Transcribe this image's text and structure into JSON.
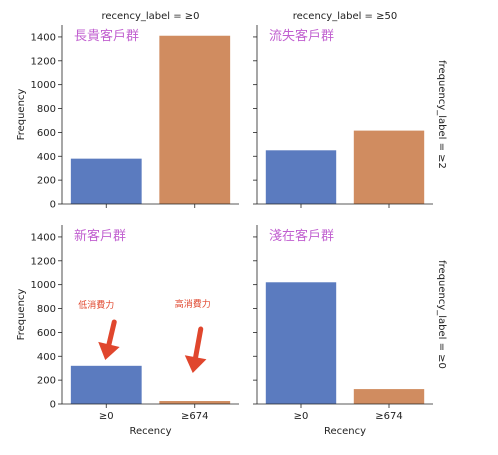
{
  "chart_data": {
    "type": "bar",
    "column_titles": [
      "recency_label = ≥0",
      "recency_label = ≥50"
    ],
    "row_titles": [
      "frequency_label = ≥2",
      "frequency_label = ≥0"
    ],
    "xlabel": "Recency",
    "ylabel": "Frequency",
    "categories": [
      "≥0",
      "≥674"
    ],
    "ylim": [
      0,
      1500
    ],
    "yticks": [
      0,
      200,
      400,
      600,
      800,
      1000,
      1200,
      1400
    ],
    "grid": false,
    "colors": [
      "#5b7bbf",
      "#d08c60"
    ],
    "arrow_color": "#e0462d",
    "panels": [
      {
        "row": 0,
        "col": 0,
        "title": "長貴客戶群",
        "values": [
          380,
          1410
        ]
      },
      {
        "row": 0,
        "col": 1,
        "title": "流失客戶群",
        "values": [
          450,
          615
        ]
      },
      {
        "row": 1,
        "col": 0,
        "title": "新客戶群",
        "values": [
          320,
          25
        ],
        "annotations": [
          {
            "text": "低消費力",
            "category": "≥0"
          },
          {
            "text": "高消費力",
            "category": "≥674"
          }
        ]
      },
      {
        "row": 1,
        "col": 1,
        "title": "淺在客戶群",
        "values": [
          1020,
          125
        ]
      }
    ]
  }
}
